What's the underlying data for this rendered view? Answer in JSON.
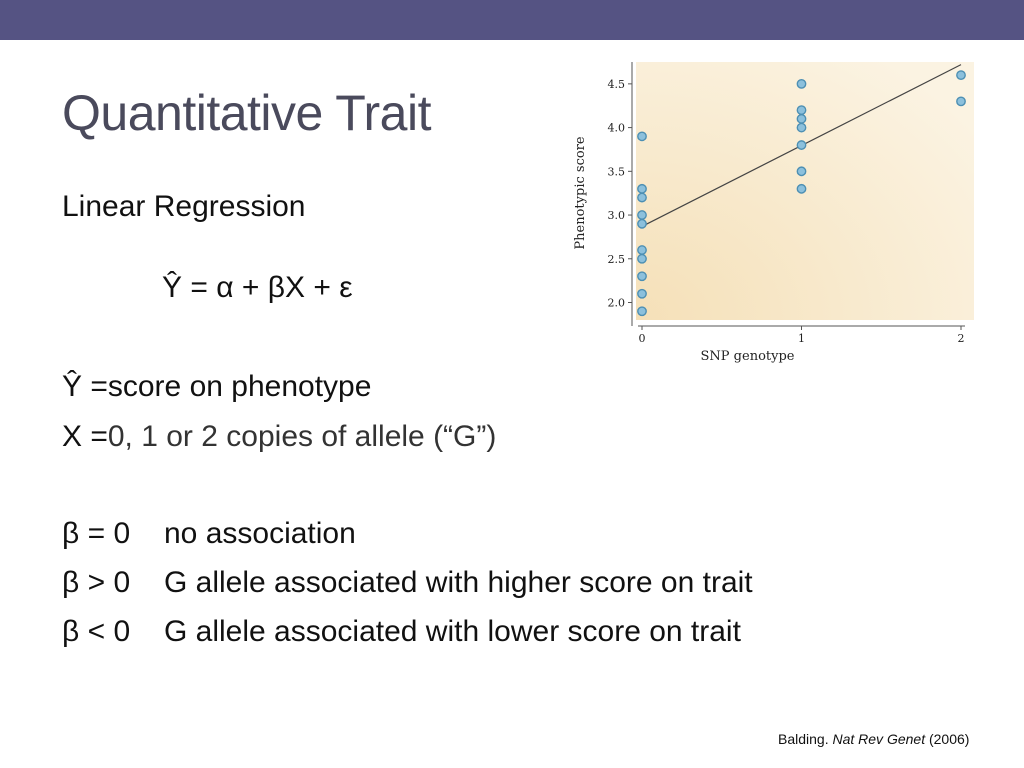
{
  "slide": {
    "title": "Quantitative Trait",
    "subtitle": "Linear Regression",
    "equation": "Ŷ = α + βX + ε",
    "definitions": [
      {
        "lhs": "Ŷ = ",
        "rhs": "score on phenotype"
      },
      {
        "lhs": "X = ",
        "rhs": "0, 1 or 2 copies of allele (“G”)"
      }
    ],
    "beta_rows": [
      {
        "lhs": "β = 0",
        "rhs": "no association"
      },
      {
        "lhs": "β > 0",
        "rhs": "G allele associated with higher score on trait"
      },
      {
        "lhs": "β < 0",
        "rhs": "G allele associated with lower score on trait"
      }
    ],
    "citation": {
      "author": "Balding.",
      "journal": "Nat Rev Genet",
      "year": "(2006)"
    }
  },
  "colors": {
    "topbar": "#555383",
    "title": "#4a4a5c",
    "point_fill": "#8cc0dc",
    "point_stroke": "#4d8fb3",
    "plot_bg_light": "#fbf3e2",
    "plot_bg_dark": "#f5e0b8"
  },
  "chart_data": {
    "type": "scatter",
    "xlabel": "SNP genotype",
    "ylabel": "Phenotypic score",
    "xlim": [
      0,
      2
    ],
    "ylim": [
      1.8,
      4.75
    ],
    "xticks": [
      "0",
      "1",
      "2"
    ],
    "yticks": [
      "2.0",
      "2.5",
      "3.0",
      "3.5",
      "4.0",
      "4.5"
    ],
    "points": [
      {
        "x": 0,
        "y": 3.9
      },
      {
        "x": 0,
        "y": 3.3
      },
      {
        "x": 0,
        "y": 3.2
      },
      {
        "x": 0,
        "y": 3.0
      },
      {
        "x": 0,
        "y": 2.9
      },
      {
        "x": 0,
        "y": 2.6
      },
      {
        "x": 0,
        "y": 2.5
      },
      {
        "x": 0,
        "y": 2.3
      },
      {
        "x": 0,
        "y": 2.1
      },
      {
        "x": 0,
        "y": 1.9
      },
      {
        "x": 1,
        "y": 4.5
      },
      {
        "x": 1,
        "y": 4.2
      },
      {
        "x": 1,
        "y": 4.1
      },
      {
        "x": 1,
        "y": 4.0
      },
      {
        "x": 1,
        "y": 3.8
      },
      {
        "x": 1,
        "y": 3.5
      },
      {
        "x": 1,
        "y": 3.3
      },
      {
        "x": 2,
        "y": 4.6
      },
      {
        "x": 2,
        "y": 4.3
      }
    ],
    "regression_line": {
      "x": [
        0,
        2
      ],
      "y": [
        2.87,
        4.72
      ]
    },
    "grid": false
  }
}
